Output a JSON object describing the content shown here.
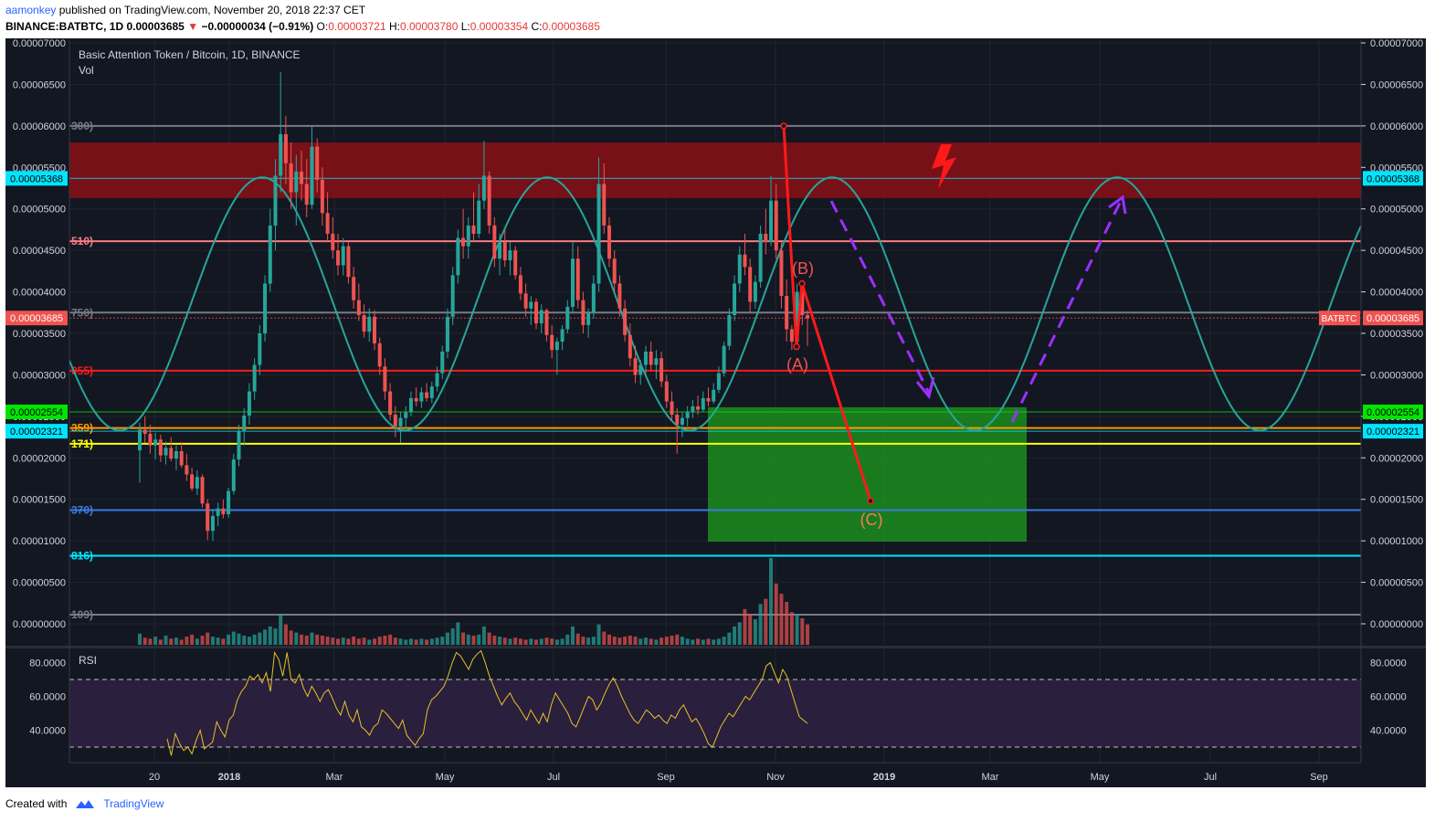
{
  "header": {
    "author": "aamonkey",
    "published_text": "published on TradingView.com, November 20, 2018 22:37 CET",
    "symbol": "BINANCE:BATBTC, 1D",
    "last": "0.00003685",
    "change": "−0.00000034 (−0.91%)",
    "o_label": "O:",
    "o": "0.00003721",
    "h_label": "H:",
    "h": "0.00003780",
    "l_label": "L:",
    "l": "0.00003354",
    "c_label": "C:",
    "c": "0.00003685"
  },
  "legend": {
    "title": "Basic Attention Token / Bitcoin, 1D, BINANCE",
    "vol_label": "Vol",
    "rsi_label": "RSI"
  },
  "footer": {
    "created_with": "Created with",
    "brand": "TradingView"
  },
  "colors": {
    "background": "#131722",
    "up": "#26a69a",
    "down": "#ef5350",
    "resistance_zone": "#8b0f16",
    "target_zone": "#1e9e1e",
    "sine": "#26a69a",
    "rsi_line": "#e6c229",
    "rsi_band": "#2a1f3d",
    "projection": "#ff1a1a",
    "purple_arrow": "#9b30ff"
  },
  "chart_data": {
    "type": "candlestick",
    "title": "Basic Attention Token / Bitcoin, 1D, BINANCE",
    "x_tick_labels": [
      "20",
      "2018",
      "Mar",
      "May",
      "Jul",
      "Sep",
      "Nov",
      "2019",
      "Mar",
      "May",
      "Jul",
      "Sep"
    ],
    "y_range": [
      0,
      7e-05
    ],
    "y_tick_labels": [
      "0.00007000",
      "0.00006500",
      "0.00006000",
      "0.00005500",
      "0.00005000",
      "0.00004500",
      "0.00004000",
      "0.00003500",
      "0.00003000",
      "0.00002500",
      "0.00002000",
      "0.00001500",
      "0.00001000",
      "0.00000500",
      "0.00000000"
    ],
    "right_tick_labels": [
      "0.00007000",
      "0.00006500",
      "0.00006000",
      "0.00005500",
      "0.00005000",
      "0.00004500",
      "0.00004000",
      "0.00003500",
      "0.00003000",
      "0.00002500",
      "0.00002000",
      "0.00001500",
      "0.00001000",
      "0.00000500",
      "0.00000000"
    ],
    "price_tags": [
      {
        "label": "0.00005368",
        "value": 5.368e-05,
        "color": "#00e5ff",
        "text_color": "#000000",
        "sides": [
          "left",
          "right"
        ]
      },
      {
        "label": "0.00003685",
        "value": 3.685e-05,
        "color": "#ef5350",
        "text_color": "#ffffff",
        "sides": [
          "left",
          "right"
        ],
        "symbol": "BATBTC"
      },
      {
        "label": "0.00002554",
        "value": 2.554e-05,
        "color": "#00e600",
        "text_color": "#000000",
        "sides": [
          "left",
          "right"
        ]
      },
      {
        "label": "0.00002321",
        "value": 2.321e-05,
        "color": "#00e5ff",
        "text_color": "#000000",
        "sides": [
          "left",
          "right"
        ]
      }
    ],
    "fib_levels": [
      {
        "label": "300)",
        "value": 6e-05,
        "color": "#787b86",
        "width": 2
      },
      {
        "label": "510)",
        "value": 4.61e-05,
        "color": "#f77c80",
        "width": 2
      },
      {
        "label": "750)",
        "value": 3.75e-05,
        "color": "#787b86",
        "width": 2
      },
      {
        "label": "055)",
        "value": 3.05e-05,
        "color": "#ff1a1a",
        "width": 2
      },
      {
        "label": "359)",
        "value": 2.36e-05,
        "color": "#ff9800",
        "width": 2
      },
      {
        "label": "171)",
        "value": 2.17e-05,
        "color": "#ffff00",
        "width": 2
      },
      {
        "label": "370)",
        "value": 1.37e-05,
        "color": "#3b7ddd",
        "width": 2
      },
      {
        "label": "816)",
        "value": 8.2e-06,
        "color": "#00e5ff",
        "width": 2
      },
      {
        "label": "109)",
        "value": 1.1e-06,
        "color": "#787b86",
        "width": 2
      }
    ],
    "zones": [
      {
        "name": "resistance",
        "from": 5.13e-05,
        "to": 5.8e-05
      },
      {
        "name": "target",
        "from": 9.9e-06,
        "to": 2.61e-05
      }
    ],
    "wave_labels": [
      "(A)",
      "(B)",
      "(C)"
    ],
    "candles_ohlc": [
      [
        2.09e-05,
        2.42e-05,
        1.7e-05,
        2.34e-05
      ],
      [
        2.34e-05,
        2.5e-05,
        2.18e-05,
        2.29e-05
      ],
      [
        2.29e-05,
        2.4e-05,
        2.05e-05,
        2.15e-05
      ],
      [
        2.15e-05,
        2.3e-05,
        1.98e-05,
        2.22e-05
      ],
      [
        2.22e-05,
        2.28e-05,
        1.95e-05,
        2.03e-05
      ],
      [
        2.03e-05,
        2.2e-05,
        1.92e-05,
        2.12e-05
      ],
      [
        2.12e-05,
        2.25e-05,
        1.96e-05,
        1.99e-05
      ],
      [
        1.99e-05,
        2.15e-05,
        1.85e-05,
        2.08e-05
      ],
      [
        2.08e-05,
        2.19e-05,
        1.88e-05,
        1.91e-05
      ],
      [
        1.91e-05,
        2.05e-05,
        1.72e-05,
        1.8e-05
      ],
      [
        1.8e-05,
        1.88e-05,
        1.6e-05,
        1.63e-05
      ],
      [
        1.63e-05,
        1.85e-05,
        1.55e-05,
        1.77e-05
      ],
      [
        1.77e-05,
        1.8e-05,
        1.4e-05,
        1.45e-05
      ],
      [
        1.45e-05,
        1.5e-05,
        1.01e-05,
        1.12e-05
      ],
      [
        1.12e-05,
        1.38e-05,
        1e-05,
        1.3e-05
      ],
      [
        1.3e-05,
        1.46e-05,
        1.18e-05,
        1.39e-05
      ],
      [
        1.39e-05,
        1.5e-05,
        1.27e-05,
        1.32e-05
      ],
      [
        1.32e-05,
        1.64e-05,
        1.28e-05,
        1.6e-05
      ],
      [
        1.6e-05,
        2.05e-05,
        1.56e-05,
        1.98e-05
      ],
      [
        1.98e-05,
        2.4e-05,
        1.9e-05,
        2.32e-05
      ],
      [
        2.32e-05,
        2.6e-05,
        2.15e-05,
        2.51e-05
      ],
      [
        2.51e-05,
        2.9e-05,
        2.4e-05,
        2.8e-05
      ],
      [
        2.8e-05,
        3.2e-05,
        2.7e-05,
        3.12e-05
      ],
      [
        3.12e-05,
        3.6e-05,
        3e-05,
        3.5e-05
      ],
      [
        3.5e-05,
        4.2e-05,
        3.4e-05,
        4.1e-05
      ],
      [
        4.1e-05,
        5e-05,
        4e-05,
        4.8e-05
      ],
      [
        4.8e-05,
        5.6e-05,
        4.5e-05,
        5.4e-05
      ],
      [
        5.4e-05,
        6.65e-05,
        5.2e-05,
        5.9e-05
      ],
      [
        5.9e-05,
        6.12e-05,
        5.3e-05,
        5.55e-05
      ],
      [
        5.55e-05,
        5.8e-05,
        5e-05,
        5.2e-05
      ],
      [
        5.2e-05,
        5.65e-05,
        4.8e-05,
        5.45e-05
      ],
      [
        5.45e-05,
        5.7e-05,
        5.1e-05,
        5.3e-05
      ],
      [
        5.3e-05,
        5.6e-05,
        4.9e-05,
        5.05e-05
      ],
      [
        5.05e-05,
        6e-05,
        5e-05,
        5.75e-05
      ],
      [
        5.75e-05,
        5.85e-05,
        5.2e-05,
        5.35e-05
      ],
      [
        5.35e-05,
        5.5e-05,
        4.8e-05,
        4.95e-05
      ],
      [
        4.95e-05,
        5.2e-05,
        4.6e-05,
        4.7e-05
      ],
      [
        4.7e-05,
        4.9e-05,
        4.4e-05,
        4.5e-05
      ],
      [
        4.5e-05,
        4.7e-05,
        4.2e-05,
        4.32e-05
      ],
      [
        4.32e-05,
        4.65e-05,
        4.2e-05,
        4.55e-05
      ],
      [
        4.55e-05,
        4.6e-05,
        4.1e-05,
        4.18e-05
      ],
      [
        4.18e-05,
        4.3e-05,
        3.8e-05,
        3.9e-05
      ],
      [
        3.9e-05,
        4.1e-05,
        3.65e-05,
        3.72e-05
      ],
      [
        3.72e-05,
        3.85e-05,
        3.45e-05,
        3.52e-05
      ],
      [
        3.52e-05,
        3.8e-05,
        3.4e-05,
        3.7e-05
      ],
      [
        3.7e-05,
        3.78e-05,
        3.3e-05,
        3.38e-05
      ],
      [
        3.38e-05,
        3.45e-05,
        3e-05,
        3.1e-05
      ],
      [
        3.1e-05,
        3.2e-05,
        2.7e-05,
        2.8e-05
      ],
      [
        2.8e-05,
        2.9e-05,
        2.45e-05,
        2.52e-05
      ],
      [
        2.52e-05,
        2.62e-05,
        2.25e-05,
        2.38e-05
      ],
      [
        2.38e-05,
        2.55e-05,
        2.18e-05,
        2.48e-05
      ],
      [
        2.48e-05,
        2.62e-05,
        2.35e-05,
        2.55e-05
      ],
      [
        2.55e-05,
        2.8e-05,
        2.5e-05,
        2.72e-05
      ],
      [
        2.72e-05,
        2.85e-05,
        2.62e-05,
        2.68e-05
      ],
      [
        2.68e-05,
        2.85e-05,
        2.6e-05,
        2.79e-05
      ],
      [
        2.79e-05,
        2.9e-05,
        2.68e-05,
        2.72e-05
      ],
      [
        2.72e-05,
        2.92e-05,
        2.66e-05,
        2.86e-05
      ],
      [
        2.86e-05,
        3.1e-05,
        2.8e-05,
        3.02e-05
      ],
      [
        3.02e-05,
        3.35e-05,
        2.95e-05,
        3.28e-05
      ],
      [
        3.28e-05,
        3.8e-05,
        3.2e-05,
        3.7e-05
      ],
      [
        3.7e-05,
        4.3e-05,
        3.6e-05,
        4.2e-05
      ],
      [
        4.2e-05,
        4.75e-05,
        4.1e-05,
        4.65e-05
      ],
      [
        4.65e-05,
        5e-05,
        4.4e-05,
        4.55e-05
      ],
      [
        4.55e-05,
        4.9e-05,
        4.4e-05,
        4.8e-05
      ],
      [
        4.8e-05,
        5.2e-05,
        4.6e-05,
        4.7e-05
      ],
      [
        4.7e-05,
        5.3e-05,
        4.65e-05,
        5.1e-05
      ],
      [
        5.1e-05,
        5.82e-05,
        5e-05,
        5.4e-05
      ],
      [
        5.4e-05,
        5.45e-05,
        4.7e-05,
        4.8e-05
      ],
      [
        4.8e-05,
        4.9e-05,
        4.3e-05,
        4.4e-05
      ],
      [
        4.4e-05,
        4.7e-05,
        4.2e-05,
        4.6e-05
      ],
      [
        4.6e-05,
        4.75e-05,
        4.3e-05,
        4.38e-05
      ],
      [
        4.38e-05,
        4.6e-05,
        4.2e-05,
        4.5e-05
      ],
      [
        4.5e-05,
        4.55e-05,
        4.15e-05,
        4.2e-05
      ],
      [
        4.2e-05,
        4.3e-05,
        3.9e-05,
        3.98e-05
      ],
      [
        3.98e-05,
        4.1e-05,
        3.7e-05,
        3.8e-05
      ],
      [
        3.8e-05,
        3.95e-05,
        3.6e-05,
        3.88e-05
      ],
      [
        3.88e-05,
        3.92e-05,
        3.55e-05,
        3.62e-05
      ],
      [
        3.62e-05,
        3.85e-05,
        3.5e-05,
        3.78e-05
      ],
      [
        3.78e-05,
        3.8e-05,
        3.4e-05,
        3.48e-05
      ],
      [
        3.48e-05,
        3.6e-05,
        3.2e-05,
        3.3e-05
      ],
      [
        3.3e-05,
        3.45e-05,
        3e-05,
        3.4e-05
      ],
      [
        3.4e-05,
        3.6e-05,
        3.3e-05,
        3.55e-05
      ],
      [
        3.55e-05,
        3.9e-05,
        3.5e-05,
        3.82e-05
      ],
      [
        3.82e-05,
        4.6e-05,
        3.75e-05,
        4.4e-05
      ],
      [
        4.4e-05,
        4.55e-05,
        3.8e-05,
        3.9e-05
      ],
      [
        3.9e-05,
        4e-05,
        3.5e-05,
        3.6e-05
      ],
      [
        3.6e-05,
        3.8e-05,
        3.45e-05,
        3.75e-05
      ],
      [
        3.75e-05,
        4.2e-05,
        3.68e-05,
        4.1e-05
      ],
      [
        4.1e-05,
        5.62e-05,
        4e-05,
        5.3e-05
      ],
      [
        5.3e-05,
        5.55e-05,
        4.7e-05,
        4.8e-05
      ],
      [
        4.8e-05,
        4.9e-05,
        4.3e-05,
        4.4e-05
      ],
      [
        4.4e-05,
        4.5e-05,
        4e-05,
        4.1e-05
      ],
      [
        4.1e-05,
        4.2e-05,
        3.7e-05,
        3.8e-05
      ],
      [
        3.8e-05,
        3.9e-05,
        3.4e-05,
        3.48e-05
      ],
      [
        3.48e-05,
        3.62e-05,
        3.1e-05,
        3.2e-05
      ],
      [
        3.2e-05,
        3.35e-05,
        2.9e-05,
        3e-05
      ],
      [
        3e-05,
        3.18e-05,
        2.88e-05,
        3.12e-05
      ],
      [
        3.12e-05,
        3.35e-05,
        3e-05,
        3.28e-05
      ],
      [
        3.28e-05,
        3.4e-05,
        3.05e-05,
        3.12e-05
      ],
      [
        3.12e-05,
        3.3e-05,
        2.95e-05,
        3.2e-05
      ],
      [
        3.2e-05,
        3.28e-05,
        2.85e-05,
        2.92e-05
      ],
      [
        2.92e-05,
        3e-05,
        2.6e-05,
        2.68e-05
      ],
      [
        2.68e-05,
        2.8e-05,
        2.45e-05,
        2.52e-05
      ],
      [
        2.52e-05,
        2.6e-05,
        2.05e-05,
        2.4e-05
      ],
      [
        2.4e-05,
        2.55e-05,
        2.25e-05,
        2.48e-05
      ],
      [
        2.48e-05,
        2.62e-05,
        2.38e-05,
        2.55e-05
      ],
      [
        2.55e-05,
        2.7e-05,
        2.48e-05,
        2.62e-05
      ],
      [
        2.62e-05,
        2.75e-05,
        2.52e-05,
        2.58e-05
      ],
      [
        2.58e-05,
        2.8e-05,
        2.55e-05,
        2.72e-05
      ],
      [
        2.72e-05,
        2.85e-05,
        2.62e-05,
        2.68e-05
      ],
      [
        2.68e-05,
        2.9e-05,
        2.65e-05,
        2.82e-05
      ],
      [
        2.82e-05,
        3.1e-05,
        2.78e-05,
        3.02e-05
      ],
      [
        3.02e-05,
        3.4e-05,
        2.98e-05,
        3.35e-05
      ],
      [
        3.35e-05,
        3.8e-05,
        3.3e-05,
        3.72e-05
      ],
      [
        3.72e-05,
        4.2e-05,
        3.65e-05,
        4.1e-05
      ],
      [
        4.1e-05,
        4.55e-05,
        4e-05,
        4.45e-05
      ],
      [
        4.45e-05,
        4.7e-05,
        4.2e-05,
        4.3e-05
      ],
      [
        4.3e-05,
        4.4e-05,
        3.75e-05,
        3.88e-05
      ],
      [
        3.88e-05,
        4.2e-05,
        3.8e-05,
        4.12e-05
      ],
      [
        4.12e-05,
        4.8e-05,
        4.05e-05,
        4.7e-05
      ],
      [
        4.7e-05,
        5e-05,
        4.45e-05,
        4.6e-05
      ],
      [
        4.6e-05,
        5.4e-05,
        4.55e-05,
        5.1e-05
      ],
      [
        5.1e-05,
        5.3e-05,
        4.4e-05,
        4.5e-05
      ],
      [
        4.5e-05,
        4.6e-05,
        3.8e-05,
        3.95e-05
      ],
      [
        3.95e-05,
        4.15e-05,
        3.4e-05,
        3.55e-05
      ],
      [
        3.55e-05,
        3.6e-05,
        3.3e-05,
        3.4e-05
      ],
      [
        3.4e-05,
        4.1e-05,
        3.35e-05,
        4e-05
      ],
      [
        4e-05,
        4.05e-05,
        3.6e-05,
        3.72e-05
      ],
      [
        3.72e-05,
        3.78e-05,
        3.35e-05,
        3.68e-05
      ]
    ],
    "volume": [
      1.1e-06,
      7e-07,
      6e-07,
      8e-07,
      5e-07,
      9e-07,
      6e-07,
      7e-07,
      5e-07,
      8e-07,
      1e-06,
      6e-07,
      9e-07,
      1.2e-06,
      8e-07,
      7e-07,
      6e-07,
      1e-06,
      1.3e-06,
      1.1e-06,
      9e-07,
      8e-07,
      1e-06,
      1.2e-06,
      1.5e-06,
      1.8e-06,
      1.6e-06,
      3e-06,
      2e-06,
      1.4e-06,
      1.2e-06,
      1e-06,
      9e-07,
      1.2e-06,
      1e-06,
      9e-07,
      8e-07,
      7e-07,
      6e-07,
      7e-07,
      6e-07,
      8e-07,
      6e-07,
      7e-07,
      5e-07,
      6e-07,
      8e-07,
      9e-07,
      1e-06,
      7e-07,
      6e-07,
      5e-07,
      6e-07,
      5e-07,
      6e-07,
      5e-07,
      6e-07,
      7e-07,
      8e-07,
      1.2e-06,
      1.6e-06,
      2.2e-06,
      1.2e-06,
      1e-06,
      9e-07,
      1e-06,
      1.8e-06,
      1.2e-06,
      9e-07,
      8e-07,
      7e-07,
      6e-07,
      7e-07,
      6e-07,
      5e-07,
      6e-07,
      5e-07,
      6e-07,
      7e-07,
      6e-07,
      5e-07,
      6e-07,
      1e-06,
      1.8e-06,
      1.1e-06,
      8e-07,
      7e-07,
      8e-07,
      2e-06,
      1.3e-06,
      1e-06,
      8e-07,
      7e-07,
      8e-07,
      9e-07,
      8e-07,
      6e-07,
      7e-07,
      6e-07,
      5e-07,
      7e-07,
      8e-07,
      9e-07,
      1e-06,
      8e-07,
      6e-07,
      5e-07,
      6e-07,
      5e-07,
      6e-07,
      5e-07,
      6e-07,
      8e-07,
      1.2e-06,
      1.8e-06,
      2.2e-06,
      3.5e-06,
      3e-06,
      2.5e-06,
      4e-06,
      4.5e-06,
      8.5e-06,
      6e-06,
      5e-06,
      4.2e-06,
      3.2e-06,
      3e-06,
      2.6e-06,
      2e-06
    ],
    "rsi_range": [
      20,
      90
    ],
    "rsi_tick_labels": [
      "80.0000",
      "60.0000",
      "40.0000"
    ],
    "rsi_band": [
      30,
      70
    ],
    "rsi": [
      35,
      25,
      38,
      32,
      28,
      30,
      26,
      34,
      40,
      29,
      31,
      33,
      45,
      40,
      36,
      46,
      49,
      58,
      63,
      66,
      72,
      70,
      73,
      68,
      74,
      63,
      86,
      82,
      72,
      86,
      70,
      68,
      73,
      65,
      60,
      66,
      62,
      57,
      62,
      64,
      59,
      53,
      49,
      57,
      49,
      45,
      52,
      42,
      40,
      37,
      42,
      44,
      52,
      50,
      47,
      44,
      41,
      46,
      37,
      34,
      31,
      35,
      38,
      52,
      58,
      60,
      63,
      66,
      72,
      80,
      86,
      84,
      80,
      76,
      82,
      85,
      87,
      80,
      72,
      66,
      60,
      55,
      59,
      62,
      57,
      54,
      50,
      46,
      52,
      48,
      44,
      50,
      45,
      55,
      62,
      58,
      54,
      50,
      44,
      42,
      48,
      54,
      60,
      58,
      52,
      56,
      62,
      67,
      71,
      66,
      60,
      55,
      50,
      46,
      44,
      48,
      52,
      50,
      47,
      49,
      46,
      44,
      49,
      47,
      52,
      55,
      50,
      45,
      47,
      43,
      38,
      32,
      30,
      36,
      42,
      46,
      50,
      48,
      52,
      56,
      60,
      58,
      62,
      66,
      70,
      78,
      80,
      74,
      68,
      76,
      72,
      64,
      56,
      48,
      46,
      44
    ]
  }
}
